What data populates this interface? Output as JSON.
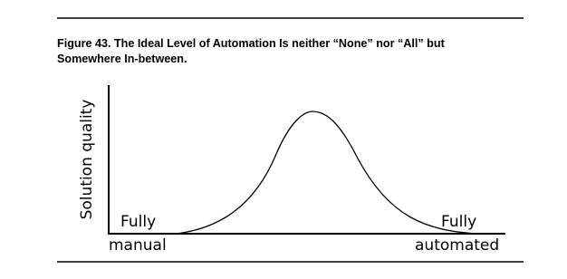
{
  "figure": {
    "caption_lines": [
      "Figure 43.  The Ideal Level of Automation Is neither “None” nor “All” but",
      "Somewhere In-between."
    ],
    "y_axis_label": "Solution quality",
    "x_left_label": [
      "Fully",
      "manual"
    ],
    "x_right_label": [
      "Fully",
      "automated"
    ]
  }
}
